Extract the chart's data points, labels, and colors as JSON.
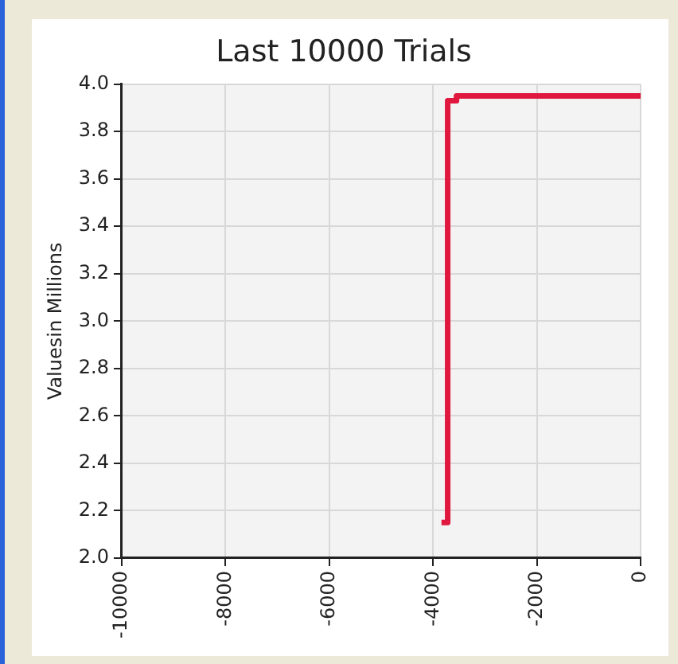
{
  "chart_data": {
    "type": "step",
    "title": "Last 10000 Trials",
    "ylabel": "Valuesin Millions",
    "x": [
      -3840,
      -3720,
      -3550,
      0
    ],
    "series": [
      {
        "color": "#e0173f",
        "values": [
          2.15,
          3.93,
          3.95,
          3.95
        ]
      }
    ],
    "xlim": [
      -10000,
      0
    ],
    "xticks": [
      -10000,
      -8000,
      -6000,
      -4000,
      -2000,
      0
    ],
    "ylim": [
      2.0,
      4.0
    ],
    "yticks": [
      {
        "value": 2.0,
        "label": "2.0"
      },
      {
        "value": 2.2,
        "label": "2.2"
      },
      {
        "value": 2.4,
        "label": "2.4"
      },
      {
        "value": 2.6,
        "label": "2.6"
      },
      {
        "value": 2.8,
        "label": "2.8"
      },
      {
        "value": 3.0,
        "label": "3.0"
      },
      {
        "value": 3.2,
        "label": "3.2"
      },
      {
        "value": 3.4,
        "label": "3.4"
      },
      {
        "value": 3.6,
        "label": "3.6"
      },
      {
        "value": 3.8,
        "label": "3.8"
      },
      {
        "value": 4.0,
        "label": "4.0"
      }
    ],
    "grid": true,
    "legend": false,
    "marker": "none"
  }
}
